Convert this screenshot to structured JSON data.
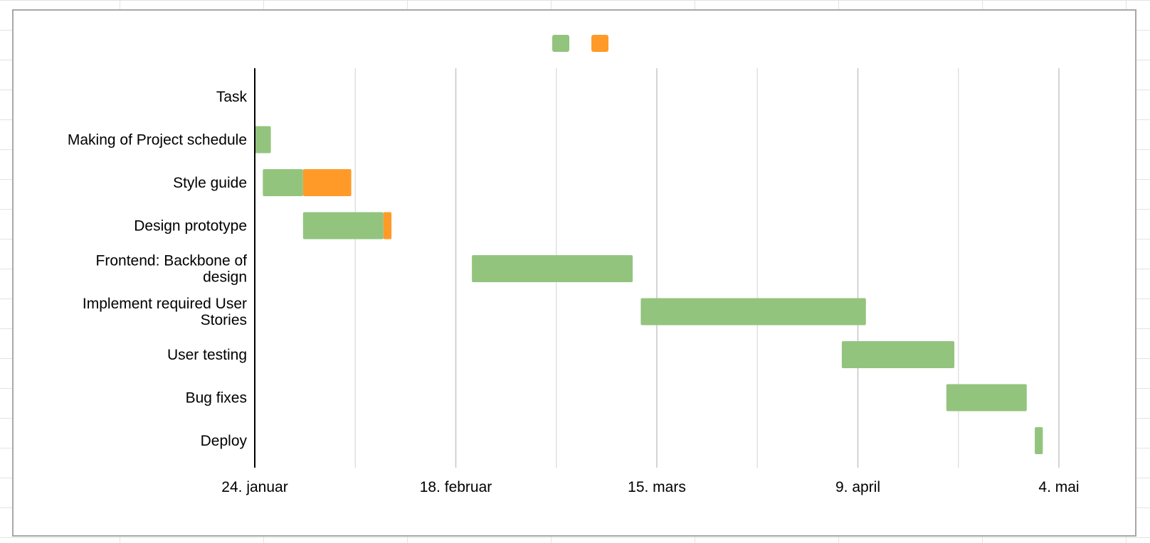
{
  "chart_data": {
    "type": "gantt",
    "title": "",
    "xlabel": "",
    "ylabel": "",
    "x_domain_days": [
      0,
      100
    ],
    "x_ticks": [
      {
        "day": 0,
        "label": "24. januar"
      },
      {
        "day": 25,
        "label": "18. februar"
      },
      {
        "day": 50,
        "label": "15. mars"
      },
      {
        "day": 75,
        "label": "9. april"
      },
      {
        "day": 100,
        "label": "4. mai"
      }
    ],
    "minor_gridline_days": [
      12.5,
      37.5,
      62.5,
      87.5
    ],
    "categories": [
      {
        "label": "Task",
        "lines": [
          "Task"
        ]
      },
      {
        "label": "Making of Project schedule",
        "lines": [
          "Making of Project schedule"
        ]
      },
      {
        "label": "Style guide",
        "lines": [
          "Style guide"
        ]
      },
      {
        "label": "Design prototype",
        "lines": [
          "Design prototype"
        ]
      },
      {
        "label": "Frontend: Backbone of design",
        "lines": [
          "Frontend: Backbone of",
          "design"
        ]
      },
      {
        "label": "Implement required User Stories",
        "lines": [
          "Implement required User",
          "Stories"
        ]
      },
      {
        "label": "User testing",
        "lines": [
          "User testing"
        ]
      },
      {
        "label": "Bug fixes",
        "lines": [
          "Bug fixes"
        ]
      },
      {
        "label": "Deploy",
        "lines": [
          "Deploy"
        ]
      }
    ],
    "series": [
      {
        "name": "",
        "color": "#93c47d",
        "bars": [
          {
            "task": "Making of Project schedule",
            "start_day": 0,
            "end_day": 2
          },
          {
            "task": "Style guide",
            "start_day": 1,
            "end_day": 6
          },
          {
            "task": "Design prototype",
            "start_day": 6,
            "end_day": 16
          },
          {
            "task": "Frontend: Backbone of design",
            "start_day": 27,
            "end_day": 47
          },
          {
            "task": "Implement required User Stories",
            "start_day": 48,
            "end_day": 76
          },
          {
            "task": "User testing",
            "start_day": 73,
            "end_day": 87
          },
          {
            "task": "Bug fixes",
            "start_day": 86,
            "end_day": 96
          },
          {
            "task": "Deploy",
            "start_day": 97,
            "end_day": 98
          }
        ]
      },
      {
        "name": "",
        "color": "#ff9a29",
        "bars": [
          {
            "task": "Style guide",
            "start_day": 6,
            "end_day": 12
          },
          {
            "task": "Design prototype",
            "start_day": 16,
            "end_day": 17
          }
        ]
      }
    ],
    "legend": {
      "placement": "top-center",
      "entries": [
        {
          "color": "#93c47d"
        },
        {
          "color": "#ff9a29"
        }
      ]
    },
    "grid": true
  }
}
